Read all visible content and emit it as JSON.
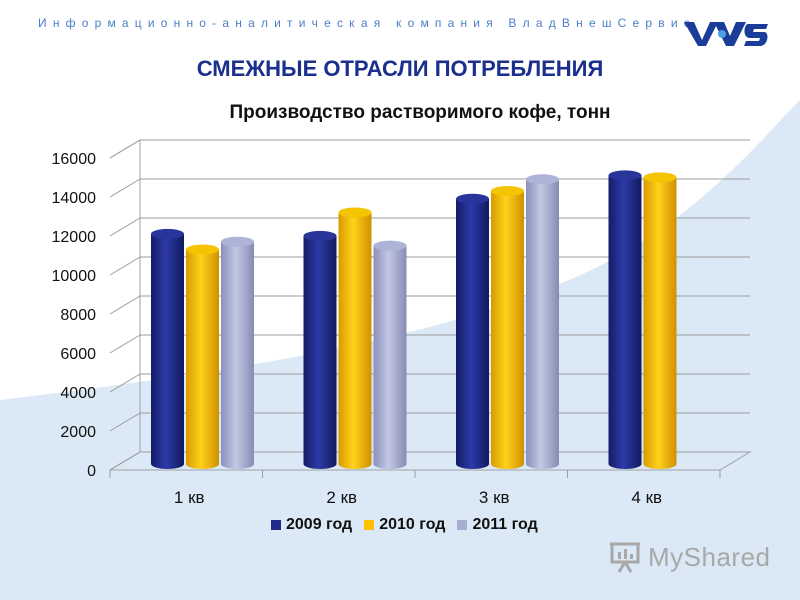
{
  "header": {
    "company": "Информационно-аналитическая компания ВладВнешСервис",
    "logo_text": "VVS"
  },
  "page_title": "СМЕЖНЫЕ ОТРАСЛИ ПОТРЕБЛЕНИЯ",
  "watermark": "MyShared",
  "colors": {
    "s2009": "#1f2a8a",
    "s2010": "#ffc000",
    "s2011": "#a8aed2",
    "accent": "#1b2f8f",
    "background_curve": "#dbe9f6"
  },
  "chart_data": {
    "type": "bar",
    "title": "Производство растворимого кофе, тонн",
    "categories": [
      "1 кв",
      "2 кв",
      "3 кв",
      "4 кв"
    ],
    "series": [
      {
        "name": "2009 год",
        "values": [
          11800,
          11700,
          13600,
          14800
        ]
      },
      {
        "name": "2010 год",
        "values": [
          11000,
          12900,
          14000,
          14700
        ]
      },
      {
        "name": "2011 год",
        "values": [
          11400,
          11200,
          14600,
          null
        ]
      }
    ],
    "ylim": [
      0,
      16000
    ],
    "yticks": [
      "0",
      "2000",
      "4000",
      "6000",
      "8000",
      "10000",
      "12000",
      "14000",
      "16000"
    ],
    "grid": true,
    "legend": "bottom"
  }
}
